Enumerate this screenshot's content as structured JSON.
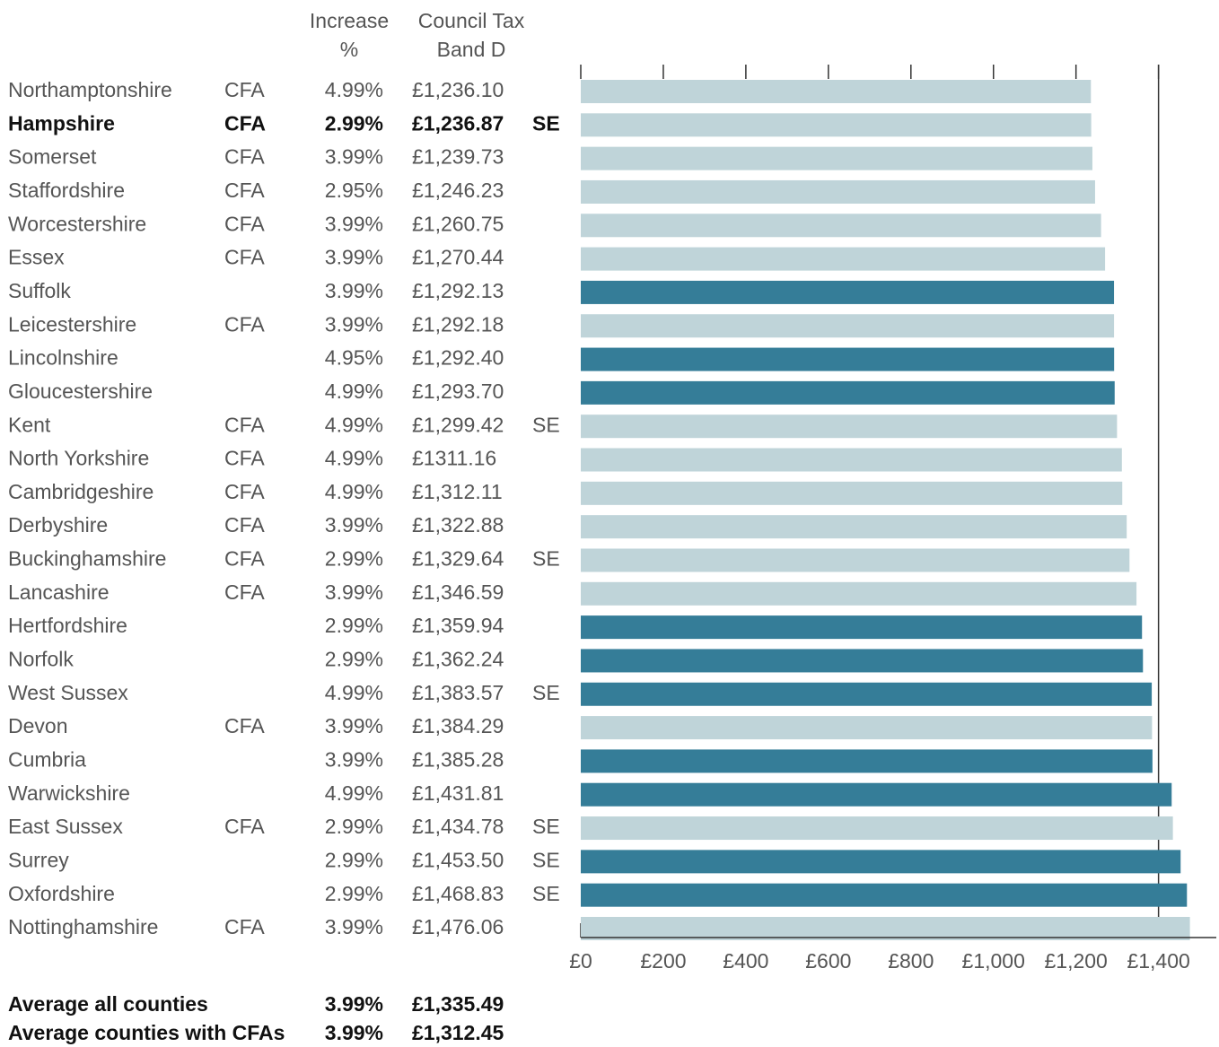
{
  "chart_data": {
    "type": "bar",
    "orientation": "horizontal",
    "column_headers": [
      [
        "Increase",
        "%"
      ],
      [
        "Council Tax",
        "Band D"
      ]
    ],
    "categories": [
      "Northamptonshire",
      "Hampshire",
      "Somerset",
      "Staffordshire",
      "Worcestershire",
      "Essex",
      "Suffolk",
      "Leicestershire",
      "Lincolnshire",
      "Gloucestershire",
      "Kent",
      "North Yorkshire",
      "Cambridgeshire",
      "Derbyshire",
      "Buckinghamshire",
      "Lancashire",
      "Hertfordshire",
      "Norfolk",
      "West Sussex",
      "Devon",
      "Cumbria",
      "Warwickshire",
      "East Sussex",
      "Surrey",
      "Oxfordshire",
      "Nottinghamshire"
    ],
    "cfa": [
      "CFA",
      "CFA",
      "CFA",
      "CFA",
      "CFA",
      "CFA",
      null,
      "CFA",
      null,
      null,
      "CFA",
      "CFA",
      "CFA",
      "CFA",
      "CFA",
      "CFA",
      null,
      null,
      null,
      "CFA",
      null,
      null,
      "CFA",
      null,
      null,
      "CFA"
    ],
    "increase": [
      "4.99%",
      "2.99%",
      "3.99%",
      "2.95%",
      "3.99%",
      "3.99%",
      "3.99%",
      "3.99%",
      "4.95%",
      "4.99%",
      "4.99%",
      "4.99%",
      "4.99%",
      "3.99%",
      "2.99%",
      "3.99%",
      "2.99%",
      "2.99%",
      "4.99%",
      "3.99%",
      "3.99%",
      "4.99%",
      "2.99%",
      "2.99%",
      "2.99%",
      "3.99%"
    ],
    "values": [
      1236.1,
      1236.87,
      1239.73,
      1246.23,
      1260.75,
      1270.44,
      1292.13,
      1292.18,
      1292.4,
      1293.7,
      1299.42,
      1311.16,
      1312.11,
      1322.88,
      1329.64,
      1346.59,
      1359.94,
      1362.24,
      1383.57,
      1384.29,
      1385.28,
      1431.81,
      1434.78,
      1453.5,
      1468.83,
      1476.06
    ],
    "value_labels": [
      "£1,236.10",
      "£1,236.87",
      "£1,239.73",
      "£1,246.23",
      "£1,260.75",
      "£1,270.44",
      "£1,292.13",
      "£1,292.18",
      "£1,292.40",
      "£1,293.70",
      "£1,299.42",
      "£1311.16",
      "£1,312.11",
      "£1,322.88",
      "£1,329.64",
      "£1,346.59",
      "£1,359.94",
      "£1,362.24",
      "£1,383.57",
      "£1,384.29",
      "£1,385.28",
      "£1,431.81",
      "£1,434.78",
      "£1,453.50",
      "£1,468.83",
      "£1,476.06"
    ],
    "region": [
      null,
      "SE",
      null,
      null,
      null,
      null,
      null,
      null,
      null,
      null,
      "SE",
      null,
      null,
      null,
      "SE",
      null,
      null,
      null,
      "SE",
      null,
      null,
      null,
      "SE",
      "SE",
      "SE",
      null
    ],
    "highlight_index": 1,
    "colors": {
      "cfa": "#bfd4d9",
      "other": "#357d98"
    },
    "xlim": [
      0,
      1540
    ],
    "xticks": [
      {
        "value": 0,
        "label": "£0"
      },
      {
        "value": 200,
        "label": "£200"
      },
      {
        "value": 400,
        "label": "£400"
      },
      {
        "value": 600,
        "label": "£600"
      },
      {
        "value": 800,
        "label": "£800"
      },
      {
        "value": 1000,
        "label": "£1,000"
      },
      {
        "value": 1200,
        "label": "£1,200"
      },
      {
        "value": 1400,
        "label": "£1,400"
      }
    ],
    "reference_line": 1400,
    "averages": [
      {
        "label": "Average all counties",
        "increase": "3.99%",
        "tax": "£1,335.49"
      },
      {
        "label": "Average counties with CFAs",
        "increase": "3.99%",
        "tax": "£1,312.45"
      }
    ]
  }
}
